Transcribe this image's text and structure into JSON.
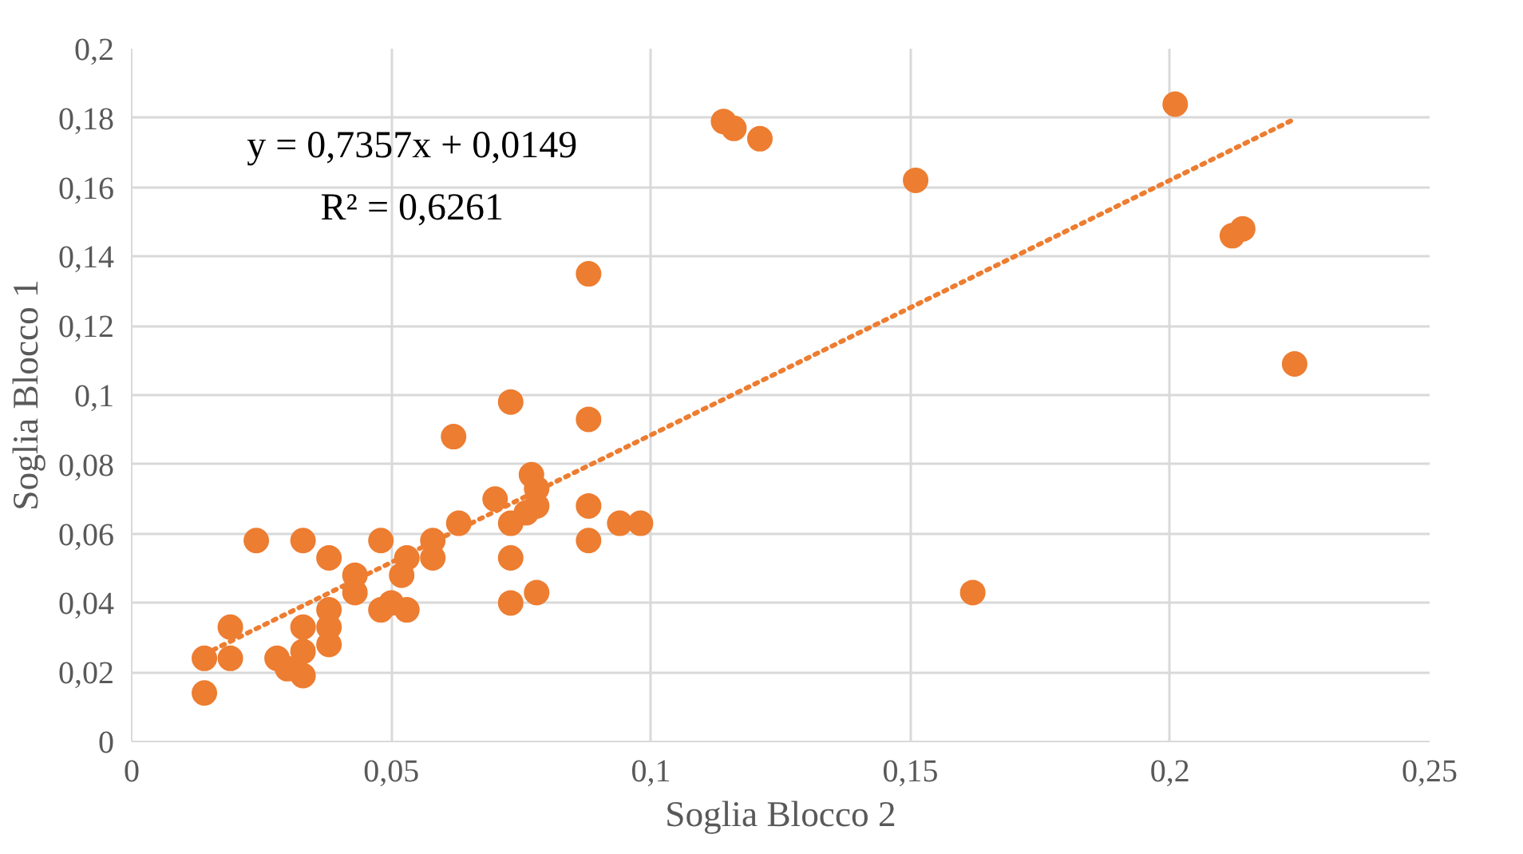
{
  "chart_data": {
    "type": "scatter",
    "xlabel": "Soglia Blocco 2",
    "ylabel": "Soglia Blocco 1",
    "xlim": [
      0,
      0.25
    ],
    "ylim": [
      0,
      0.2
    ],
    "xticks": [
      {
        "value": 0,
        "label": "0"
      },
      {
        "value": 0.05,
        "label": "0,05"
      },
      {
        "value": 0.1,
        "label": "0,1"
      },
      {
        "value": 0.15,
        "label": "0,15"
      },
      {
        "value": 0.2,
        "label": "0,2"
      },
      {
        "value": 0.25,
        "label": "0,25"
      }
    ],
    "yticks": [
      {
        "value": 0,
        "label": "0"
      },
      {
        "value": 0.02,
        "label": "0,02"
      },
      {
        "value": 0.04,
        "label": "0,04"
      },
      {
        "value": 0.06,
        "label": "0,06"
      },
      {
        "value": 0.08,
        "label": "0,08"
      },
      {
        "value": 0.1,
        "label": "0,1"
      },
      {
        "value": 0.12,
        "label": "0,12"
      },
      {
        "value": 0.14,
        "label": "0,14"
      },
      {
        "value": 0.16,
        "label": "0,16"
      },
      {
        "value": 0.18,
        "label": "0,18"
      },
      {
        "value": 0.2,
        "label": "0,2"
      }
    ],
    "grid": true,
    "annotations": [
      "y = 0,7357x + 0,0149",
      "R² = 0,6261"
    ],
    "series": [
      {
        "color": "#ed7d31",
        "marker": "circle",
        "x": [
          0.014,
          0.014,
          0.019,
          0.019,
          0.024,
          0.028,
          0.03,
          0.033,
          0.033,
          0.033,
          0.033,
          0.038,
          0.038,
          0.038,
          0.038,
          0.043,
          0.043,
          0.048,
          0.048,
          0.05,
          0.053,
          0.052,
          0.053,
          0.058,
          0.058,
          0.062,
          0.063,
          0.07,
          0.073,
          0.073,
          0.073,
          0.073,
          0.077,
          0.076,
          0.078,
          0.078,
          0.078,
          0.088,
          0.088,
          0.088,
          0.088,
          0.094,
          0.098,
          0.114,
          0.116,
          0.121,
          0.151,
          0.162,
          0.201,
          0.212,
          0.214,
          0.224
        ],
        "values": [
          0.024,
          0.014,
          0.033,
          0.024,
          0.058,
          0.024,
          0.021,
          0.019,
          0.026,
          0.033,
          0.058,
          0.028,
          0.033,
          0.038,
          0.053,
          0.043,
          0.048,
          0.038,
          0.058,
          0.04,
          0.038,
          0.048,
          0.053,
          0.053,
          0.058,
          0.088,
          0.063,
          0.07,
          0.04,
          0.053,
          0.063,
          0.098,
          0.077,
          0.066,
          0.068,
          0.073,
          0.043,
          0.058,
          0.068,
          0.093,
          0.135,
          0.063,
          0.063,
          0.179,
          0.177,
          0.174,
          0.162,
          0.043,
          0.184,
          0.146,
          0.148,
          0.109
        ]
      },
      {
        "type": "line",
        "color": "#ed7d31",
        "line_style": "dotted",
        "x": [
          0.014,
          0.224
        ],
        "values": [
          0.0252,
          0.1797
        ]
      }
    ]
  }
}
